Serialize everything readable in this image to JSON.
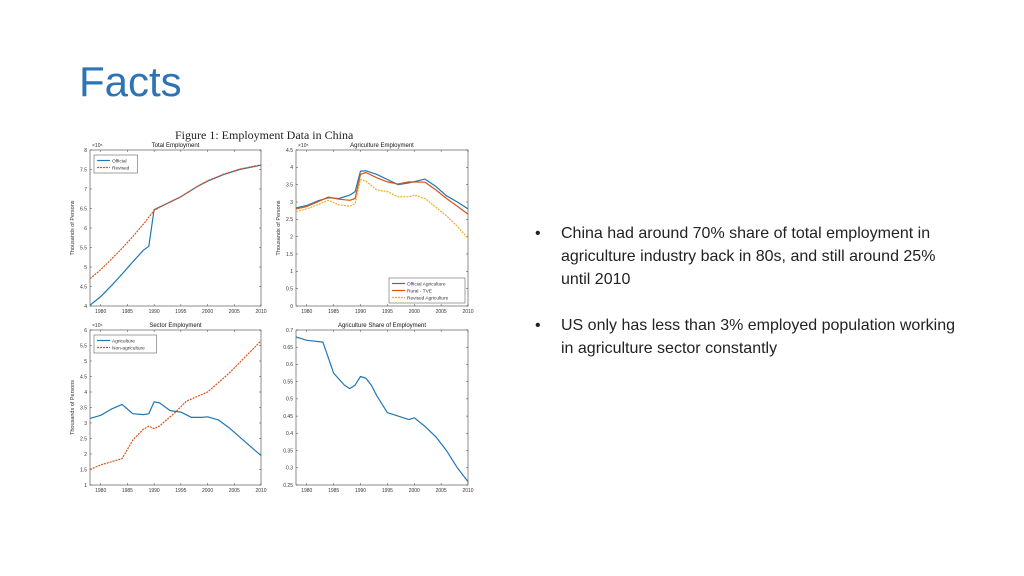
{
  "slide": {
    "title": "Facts"
  },
  "figure": {
    "caption": "Figure 1: Employment Data in China"
  },
  "bullets": [
    {
      "marker": "•",
      "text": "China had around 70% share of total employment in agriculture industry back in 80s, and still around 25% until 2010"
    },
    {
      "marker": "•",
      "text": "US only has less than 3% employed population working in agriculture sector constantly"
    }
  ],
  "colors": {
    "title": "#2e74b5",
    "blue": "#1f77b4",
    "red": "#d95319",
    "yellow": "#edb120",
    "axis": "#444444"
  },
  "chart_data": [
    {
      "type": "line",
      "title": "Total Employment",
      "ylabel": "Thousands of Persons",
      "xlabel": "",
      "exponent": "×10⁵",
      "xlim": [
        1978,
        2010
      ],
      "ylim": [
        4,
        8
      ],
      "xticks": [
        "1980",
        "1985",
        "1990",
        "1995",
        "2000",
        "2005",
        "2010"
      ],
      "yticks": [
        "4",
        "4.5",
        "5",
        "5.5",
        "6",
        "6.5",
        "7",
        "7.5",
        "8"
      ],
      "legend": "top-left",
      "series": [
        {
          "name": "Official",
          "color": "#1f77b4",
          "dashed": false,
          "x": [
            1978,
            1980,
            1982,
            1984,
            1986,
            1988,
            1989,
            1990,
            1992,
            1995,
            1998,
            2000,
            2003,
            2006,
            2010
          ],
          "y": [
            4.02,
            4.24,
            4.52,
            4.82,
            5.13,
            5.43,
            5.53,
            6.47,
            6.6,
            6.8,
            7.06,
            7.2,
            7.37,
            7.5,
            7.61
          ]
        },
        {
          "name": "Revised",
          "color": "#d95319",
          "dashed": true,
          "x": [
            1978,
            1980,
            1982,
            1984,
            1986,
            1988,
            1990,
            1992,
            1995,
            1998,
            2000,
            2003,
            2006,
            2010
          ],
          "y": [
            4.7,
            4.93,
            5.2,
            5.48,
            5.78,
            6.1,
            6.45,
            6.6,
            6.8,
            7.06,
            7.21,
            7.38,
            7.51,
            7.62
          ]
        }
      ]
    },
    {
      "type": "line",
      "title": "Agriculture Employment",
      "ylabel": "Thousands of Persons",
      "xlabel": "",
      "exponent": "×10⁵",
      "xlim": [
        1978,
        2010
      ],
      "ylim": [
        0,
        4.5
      ],
      "xticks": [
        "1980",
        "1985",
        "1990",
        "1995",
        "2000",
        "2005",
        "2010"
      ],
      "yticks": [
        "0",
        "0.5",
        "1",
        "1.5",
        "2",
        "2.5",
        "3",
        "3.5",
        "4",
        "4.5"
      ],
      "legend": "bottom-right",
      "series": [
        {
          "name": "Official Agriculture",
          "color": "#1f77b4",
          "dashed": false,
          "x": [
            1978,
            1980,
            1982,
            1984,
            1986,
            1988,
            1989,
            1990,
            1991,
            1993,
            1995,
            1997,
            1999,
            2002,
            2004,
            2006,
            2008,
            2010
          ],
          "y": [
            2.83,
            2.9,
            3.03,
            3.12,
            3.1,
            3.2,
            3.3,
            3.89,
            3.9,
            3.8,
            3.65,
            3.5,
            3.55,
            3.66,
            3.45,
            3.18,
            3.0,
            2.8
          ]
        },
        {
          "name": "Rural - TVE",
          "color": "#d95319",
          "dashed": false,
          "x": [
            1978,
            1980,
            1982,
            1984,
            1986,
            1988,
            1989,
            1990,
            1991,
            1993,
            1995,
            1997,
            1999,
            2002,
            2004,
            2006,
            2008,
            2010
          ],
          "y": [
            2.8,
            2.87,
            3.0,
            3.14,
            3.08,
            3.05,
            3.1,
            3.8,
            3.85,
            3.7,
            3.58,
            3.52,
            3.58,
            3.57,
            3.35,
            3.1,
            2.88,
            2.65
          ]
        },
        {
          "name": "Revised Agriculture",
          "color": "#edb120",
          "dashed": true,
          "x": [
            1978,
            1980,
            1982,
            1984,
            1986,
            1988,
            1989,
            1990,
            1991,
            1993,
            1995,
            1997,
            1999,
            2000,
            2002,
            2004,
            2006,
            2008,
            2010
          ],
          "y": [
            2.72,
            2.8,
            2.92,
            3.05,
            2.92,
            2.88,
            2.95,
            3.65,
            3.6,
            3.35,
            3.3,
            3.15,
            3.15,
            3.2,
            3.1,
            2.85,
            2.6,
            2.3,
            1.95
          ]
        }
      ]
    },
    {
      "type": "line",
      "title": "Sector Employment",
      "ylabel": "Thousands of Persons",
      "xlabel": "",
      "exponent": "×10⁵",
      "xlim": [
        1978,
        2010
      ],
      "ylim": [
        1,
        6
      ],
      "xticks": [
        "1980",
        "1985",
        "1990",
        "1995",
        "2000",
        "2005",
        "2010"
      ],
      "yticks": [
        "1",
        "1.5",
        "2",
        "2.5",
        "3",
        "3.5",
        "4",
        "4.5",
        "5",
        "5.5",
        "6"
      ],
      "legend": "top-left",
      "series": [
        {
          "name": "Agriculture",
          "color": "#1f77b4",
          "dashed": false,
          "x": [
            1978,
            1980,
            1982,
            1984,
            1986,
            1988,
            1989,
            1990,
            1991,
            1993,
            1995,
            1997,
            1999,
            2000,
            2002,
            2004,
            2006,
            2008,
            2010
          ],
          "y": [
            3.15,
            3.25,
            3.45,
            3.6,
            3.3,
            3.27,
            3.3,
            3.68,
            3.65,
            3.4,
            3.35,
            3.18,
            3.18,
            3.2,
            3.1,
            2.85,
            2.55,
            2.25,
            1.95
          ]
        },
        {
          "name": "Non-agriculture",
          "color": "#d95319",
          "dashed": true,
          "x": [
            1978,
            1980,
            1982,
            1984,
            1986,
            1988,
            1989,
            1990,
            1991,
            1992,
            1994,
            1996,
            1998,
            2000,
            2002,
            2004,
            2006,
            2008,
            2010
          ],
          "y": [
            1.5,
            1.65,
            1.75,
            1.85,
            2.45,
            2.8,
            2.9,
            2.82,
            2.9,
            3.05,
            3.35,
            3.7,
            3.85,
            4.0,
            4.3,
            4.6,
            4.95,
            5.3,
            5.65
          ]
        }
      ]
    },
    {
      "type": "line",
      "title": "Agriculture Share of Employment",
      "ylabel": "",
      "xlabel": "",
      "xlim": [
        1978,
        2010
      ],
      "ylim": [
        0.25,
        0.7
      ],
      "xticks": [
        "1980",
        "1985",
        "1990",
        "1995",
        "2000",
        "2005",
        "2010"
      ],
      "yticks": [
        "0.25",
        "0.3",
        "0.35",
        "0.4",
        "0.45",
        "0.5",
        "0.55",
        "0.6",
        "0.65",
        "0.7"
      ],
      "legend": "none",
      "series": [
        {
          "name": "",
          "color": "#1f77b4",
          "dashed": false,
          "x": [
            1978,
            1980,
            1983,
            1985,
            1987,
            1988,
            1989,
            1990,
            1991,
            1992,
            1993,
            1995,
            1997,
            1999,
            2000,
            2002,
            2004,
            2006,
            2008,
            2010
          ],
          "y": [
            0.68,
            0.67,
            0.665,
            0.575,
            0.54,
            0.53,
            0.54,
            0.565,
            0.56,
            0.54,
            0.51,
            0.46,
            0.45,
            0.44,
            0.445,
            0.42,
            0.39,
            0.35,
            0.3,
            0.26
          ]
        }
      ]
    }
  ]
}
